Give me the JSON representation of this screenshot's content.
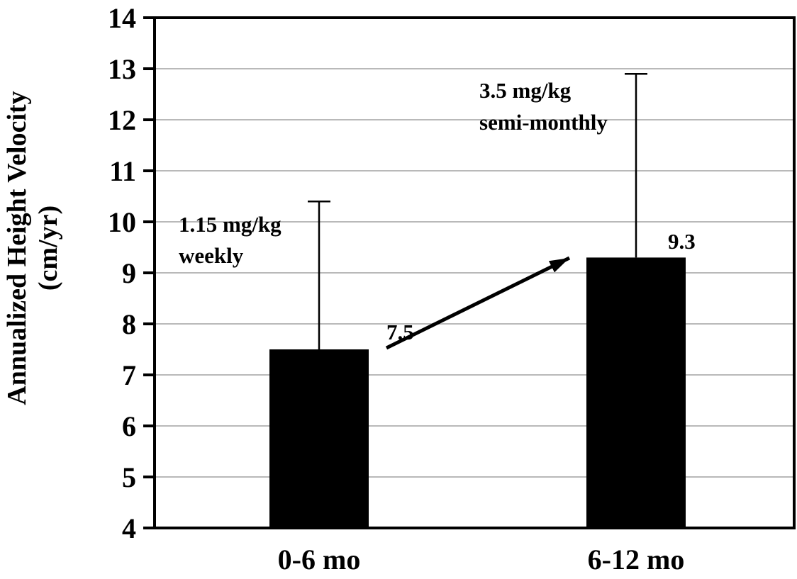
{
  "chart_data": {
    "type": "bar",
    "title": "",
    "categories": [
      "0-6 mo",
      "6-12 mo"
    ],
    "values": [
      7.5,
      9.3
    ],
    "error_upper": [
      10.4,
      12.9
    ],
    "bar_labels": [
      "7.5",
      "9.3"
    ],
    "annotations": [
      {
        "lines": [
          "1.15 mg/kg",
          "weekly"
        ]
      },
      {
        "lines": [
          "3.5 mg/kg",
          "semi-monthly"
        ]
      }
    ],
    "ylabel_line1": "Annualized Height Velocity",
    "ylabel_line2": "(cm/yr)",
    "xlabel": "",
    "ylim": [
      4,
      14
    ],
    "yticks": [
      4,
      5,
      6,
      7,
      8,
      9,
      10,
      11,
      12,
      13,
      14
    ],
    "grid": "horizontal",
    "legend": "none",
    "bar_color": "#000000",
    "gridline_color": "#b9b9b9",
    "arrow": {
      "from_category": 0,
      "to_category": 1
    }
  }
}
